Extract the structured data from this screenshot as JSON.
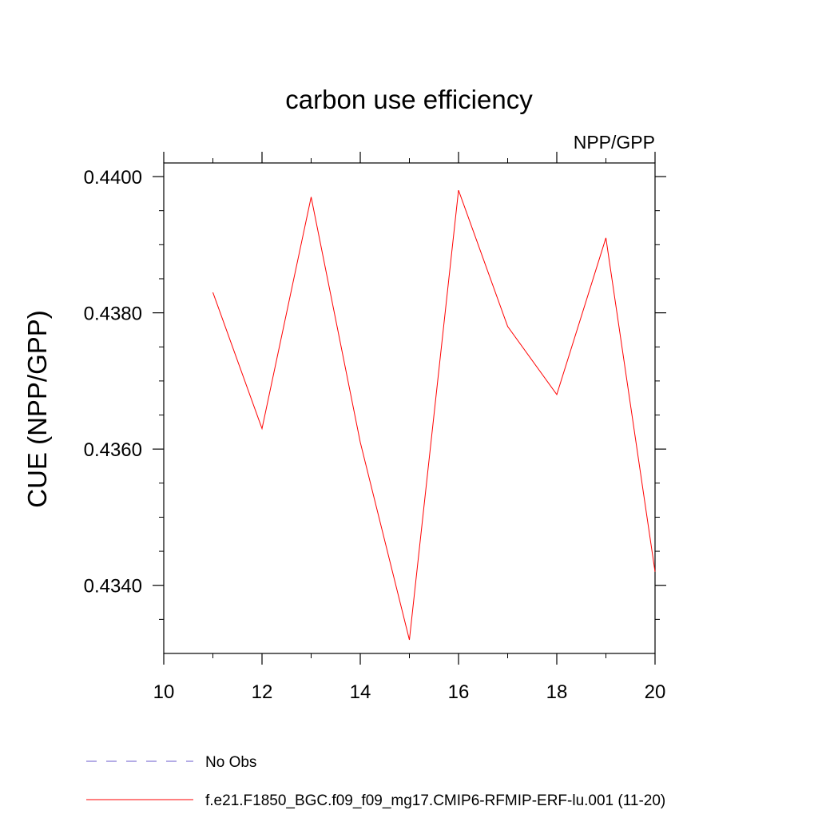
{
  "chart_data": {
    "type": "line",
    "title": "carbon use efficiency",
    "subtitle": "NPP/GPP",
    "ylabel": "CUE  (NPP/GPP)",
    "xlabel": "",
    "xlim": [
      10,
      20
    ],
    "ylim": [
      0.433,
      0.4402
    ],
    "x_ticks": [
      10,
      12,
      14,
      16,
      18,
      20
    ],
    "x_tick_labels": [
      "10",
      "12",
      "14",
      "16",
      "18",
      "20"
    ],
    "x_minor_ticks": [
      11,
      13,
      15,
      17,
      19
    ],
    "y_ticks": [
      0.434,
      0.436,
      0.438,
      0.44
    ],
    "y_tick_labels": [
      "0.4340",
      "0.4360",
      "0.4380",
      "0.4400"
    ],
    "y_minor_ticks": [
      0.4335,
      0.4345,
      0.435,
      0.4355,
      0.4365,
      0.437,
      0.4375,
      0.4385,
      0.439,
      0.4395
    ],
    "grid": false,
    "legend_position": "bottom-left",
    "series": [
      {
        "name": "No Obs",
        "color": "#6a5acd",
        "dash": "dashed",
        "x": [],
        "y": []
      },
      {
        "name": "f.e21.F1850_BGC.f09_f09_mg17.CMIP6-RFMIP-ERF-lu.001 (11-20)",
        "color": "#ff0000",
        "dash": "solid",
        "x": [
          11,
          12,
          13,
          14,
          15,
          16,
          17,
          18,
          19,
          20
        ],
        "y": [
          0.4383,
          0.4363,
          0.4397,
          0.4361,
          0.4332,
          0.4398,
          0.4378,
          0.4368,
          0.4391,
          0.4342
        ]
      }
    ]
  }
}
